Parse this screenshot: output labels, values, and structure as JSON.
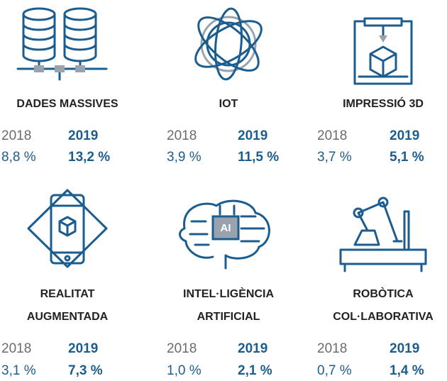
{
  "items": [
    {
      "title": [
        "DADES MASSIVES"
      ],
      "years": [
        "2018",
        "2019"
      ],
      "values": [
        "8,8 %",
        "13,2 %"
      ]
    },
    {
      "title": [
        "IOT"
      ],
      "years": [
        "2018",
        "2019"
      ],
      "values": [
        "3,9 %",
        "11,5 %"
      ]
    },
    {
      "title": [
        "IMPRESSIÓ 3D"
      ],
      "years": [
        "2018",
        "2019"
      ],
      "values": [
        "3,7 %",
        "5,1 %"
      ]
    },
    {
      "title": [
        "REALITAT",
        "AUGMENTADA"
      ],
      "years": [
        "2018",
        "2019"
      ],
      "values": [
        "3,1 %",
        "7,3 %"
      ]
    },
    {
      "title": [
        "INTEL·LIGÈNCIA",
        "ARTIFICIAL"
      ],
      "years": [
        "2018",
        "2019"
      ],
      "values": [
        "1,0 %",
        "2,1 %"
      ]
    },
    {
      "title": [
        "ROBÒTICA",
        "COL·LABORATIVA"
      ],
      "years": [
        "2018",
        "2019"
      ],
      "values": [
        "0,7 %",
        "1,4 %"
      ]
    }
  ]
}
